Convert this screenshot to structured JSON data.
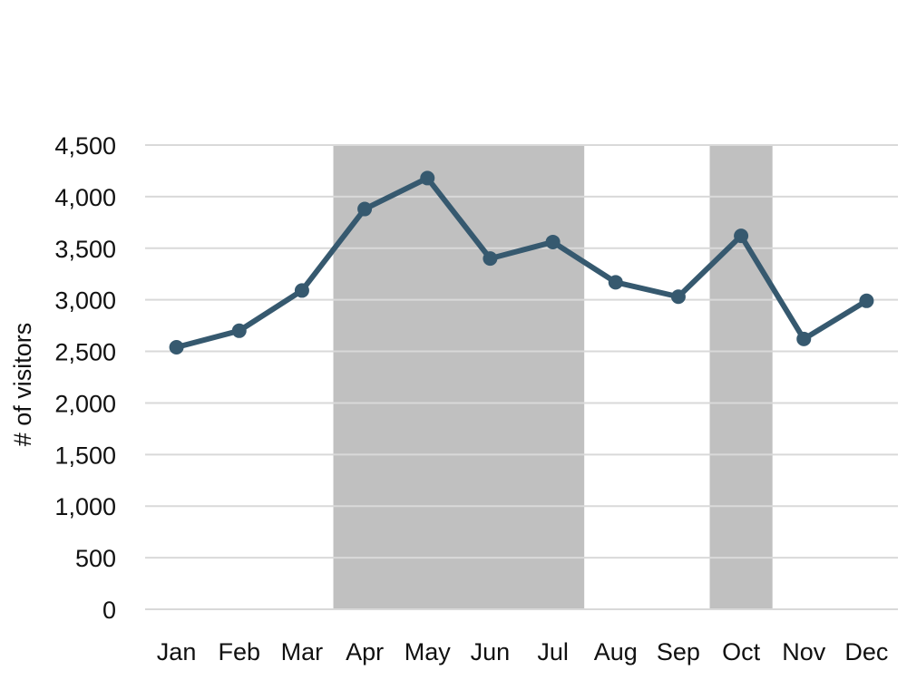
{
  "colors": {
    "line": "#36596F",
    "highlight": "#C0C0C0",
    "grid": "#D9D9D9",
    "text": "#111111",
    "background": "#FFFFFF"
  },
  "chart_data": {
    "type": "line",
    "title": "",
    "xlabel": "",
    "ylabel": "# of visitors",
    "categories": [
      "Jan",
      "Feb",
      "Mar",
      "Apr",
      "May",
      "Jun",
      "Jul",
      "Aug",
      "Sep",
      "Oct",
      "Nov",
      "Dec"
    ],
    "series": [
      {
        "values": [
          2540,
          2700,
          3090,
          3880,
          4180,
          3400,
          3560,
          3170,
          3030,
          3620,
          2620,
          2990
        ]
      }
    ],
    "ylim": [
      0,
      4500
    ],
    "yticks": [
      0,
      500,
      1000,
      1500,
      2000,
      2500,
      3000,
      3500,
      4000,
      4500
    ],
    "ytick_labels": [
      "0",
      "500",
      "1,000",
      "1,500",
      "2,000",
      "2,500",
      "3,000",
      "3,500",
      "4,000",
      "4,500"
    ],
    "grid": true,
    "legend": "none",
    "highlighted_ranges": [
      {
        "from": "Apr",
        "to": "Jul"
      },
      {
        "from": "Oct",
        "to": "Oct"
      }
    ]
  }
}
